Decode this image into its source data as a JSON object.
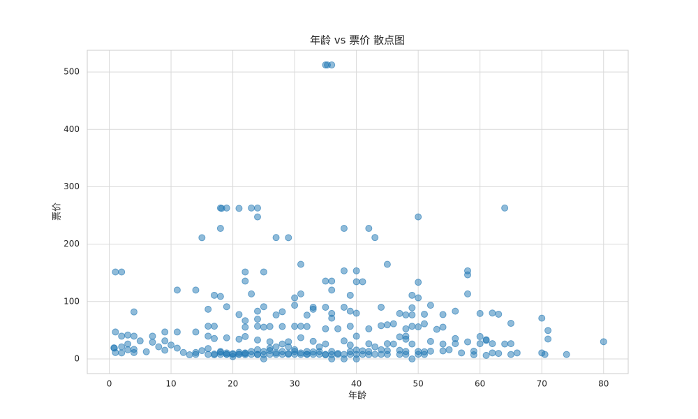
{
  "chart_data": {
    "type": "scatter",
    "title": "年龄 vs 票价 散点图",
    "x_label": "年龄",
    "y_label": "票价",
    "color": "#1f77b4",
    "grid": true,
    "xlim": [
      -3.56,
      83.98
    ],
    "ylim": [
      -25.6,
      537.9
    ],
    "xticks": [
      0,
      10,
      20,
      30,
      40,
      50,
      60,
      70,
      80
    ],
    "yticks": [
      0,
      100,
      200,
      300,
      400,
      500
    ],
    "x": [
      35,
      36,
      35.3,
      18,
      19,
      23,
      24,
      64,
      21,
      18.2,
      24,
      50,
      18,
      38,
      42,
      15,
      27,
      29,
      43,
      31,
      45,
      1,
      2,
      22,
      25,
      38,
      40,
      58,
      58,
      22,
      35,
      36,
      40,
      41,
      50,
      11,
      14,
      36,
      23,
      31,
      58,
      17,
      18,
      39,
      49,
      50,
      30,
      16,
      19,
      25,
      30,
      33,
      35,
      38,
      44,
      49,
      52,
      4,
      24,
      28,
      33,
      36,
      39,
      40,
      56,
      60,
      62,
      63,
      21,
      22,
      24,
      27,
      32,
      36,
      47,
      48,
      49,
      51,
      54,
      70,
      16,
      17,
      22,
      24,
      25,
      26,
      28,
      30,
      31,
      32,
      35,
      37,
      39,
      42,
      45,
      48,
      49,
      50,
      51,
      53,
      54,
      65,
      71,
      1,
      2,
      3,
      4,
      7,
      9,
      11,
      14,
      16,
      17,
      19,
      21,
      22,
      24,
      26,
      29,
      31,
      33,
      38,
      40,
      44,
      47,
      48,
      52,
      56,
      60,
      61,
      71,
      80,
      0.83,
      0.75,
      1,
      2,
      2,
      3,
      3,
      4,
      4,
      5,
      6,
      7,
      8,
      9,
      9,
      10,
      11,
      12,
      13,
      14,
      14,
      15,
      16,
      16,
      17,
      17,
      18,
      18,
      18,
      19,
      19,
      19,
      20,
      20,
      20,
      21,
      21,
      21,
      22,
      22,
      22,
      23,
      23,
      24,
      24,
      24,
      25,
      25,
      25,
      26,
      26,
      26,
      27,
      27,
      27,
      28,
      28,
      28,
      29,
      29,
      29,
      30,
      30,
      30,
      31,
      31,
      32,
      32,
      32,
      33,
      33,
      34,
      34,
      34,
      35,
      35,
      35,
      36,
      36,
      36,
      37,
      37,
      38,
      38,
      39,
      39,
      39,
      40,
      40,
      40,
      41,
      41,
      42,
      42,
      42,
      43,
      43,
      44,
      44,
      45,
      45,
      45,
      46,
      46,
      47,
      47,
      48,
      48,
      48,
      49,
      49,
      50,
      50,
      51,
      51,
      52,
      54,
      54,
      55,
      56,
      57,
      58,
      59,
      59,
      60,
      61,
      61,
      62,
      62,
      63,
      64,
      65,
      65,
      66,
      70,
      70.5,
      74
    ],
    "values": [
      512.33,
      512.33,
      512.33,
      263,
      263,
      263,
      263,
      263,
      262.4,
      262.4,
      247.5,
      247.5,
      227.5,
      227.5,
      227.5,
      211.3,
      211.5,
      211.3,
      211.5,
      164.9,
      164.9,
      151.5,
      151.5,
      151.55,
      151.55,
      153.5,
      153.5,
      153.5,
      146.5,
      135.6,
      135.6,
      135.6,
      134.5,
      134.5,
      133.65,
      120,
      120,
      120,
      113.3,
      113.3,
      113.3,
      110.9,
      108.9,
      110.9,
      110.9,
      106.4,
      106.4,
      86.5,
      91,
      91,
      93.5,
      90,
      90,
      90,
      90,
      89.1,
      93.5,
      81.9,
      83.2,
      82.2,
      86.5,
      79.2,
      83.2,
      79.6,
      83.2,
      79.2,
      80,
      77.9,
      77.3,
      66.6,
      69.3,
      76.7,
      76.3,
      71,
      79.2,
      76.7,
      76.7,
      77.9,
      77.3,
      71,
      57,
      57,
      55.4,
      57,
      55.4,
      56.5,
      56.5,
      56.9,
      57,
      56.5,
      52.5,
      52.5,
      56.9,
      52.5,
      59.4,
      52.5,
      56.9,
      55.9,
      61.2,
      51.5,
      55.4,
      61.98,
      49.5,
      46.9,
      39.7,
      41.6,
      39.7,
      39.7,
      46.9,
      46.9,
      46.9,
      39.7,
      35.5,
      36.75,
      34.4,
      39,
      33,
      30,
      30,
      37,
      30.7,
      31.4,
      39.6,
      57.98,
      38.5,
      39.6,
      30.5,
      35.5,
      39,
      33.5,
      34.65,
      30,
      18.75,
      19.26,
      11.13,
      10.46,
      21,
      15.9,
      26,
      16.7,
      11.13,
      31.4,
      12.5,
      29.1,
      21.1,
      15.2,
      31.4,
      24.2,
      18.8,
      11.2,
      7.2,
      11.2,
      7.85,
      14.45,
      7.75,
      18,
      8.66,
      7.1,
      7.8,
      11.5,
      13,
      7.9,
      8.05,
      10.5,
      7.85,
      9.2,
      4,
      7.8,
      8.05,
      11.5,
      7.25,
      9.35,
      10.5,
      7.85,
      13,
      7.5,
      8.05,
      16.1,
      0,
      7.65,
      13,
      7.9,
      14.5,
      18.8,
      7.9,
      10.5,
      21,
      7.9,
      13,
      26,
      7.9,
      9.5,
      21,
      8.05,
      13,
      16.1,
      7.75,
      10.5,
      7.9,
      8.05,
      13,
      7.9,
      12.3,
      8.05,
      13,
      21,
      7.05,
      8.05,
      26,
      0,
      7.5,
      13,
      7.9,
      9.6,
      7.9,
      0,
      7.9,
      13,
      24.15,
      0,
      7.9,
      15.5,
      7.9,
      14.1,
      7.55,
      13,
      26.5,
      8.05,
      21,
      7.9,
      16.1,
      7.9,
      14.45,
      26.55,
      26,
      61.2,
      7.9,
      15,
      7.85,
      13,
      34.4,
      0,
      26,
      8.05,
      13,
      7.75,
      12.5,
      13.5,
      14,
      26,
      16,
      26.55,
      10.5,
      29.7,
      7.25,
      13.5,
      26.55,
      6.2,
      32.3,
      10.5,
      26.55,
      9.6,
      26,
      7.75,
      26.55,
      10.5,
      10.5,
      7.75,
      7.78
    ]
  }
}
